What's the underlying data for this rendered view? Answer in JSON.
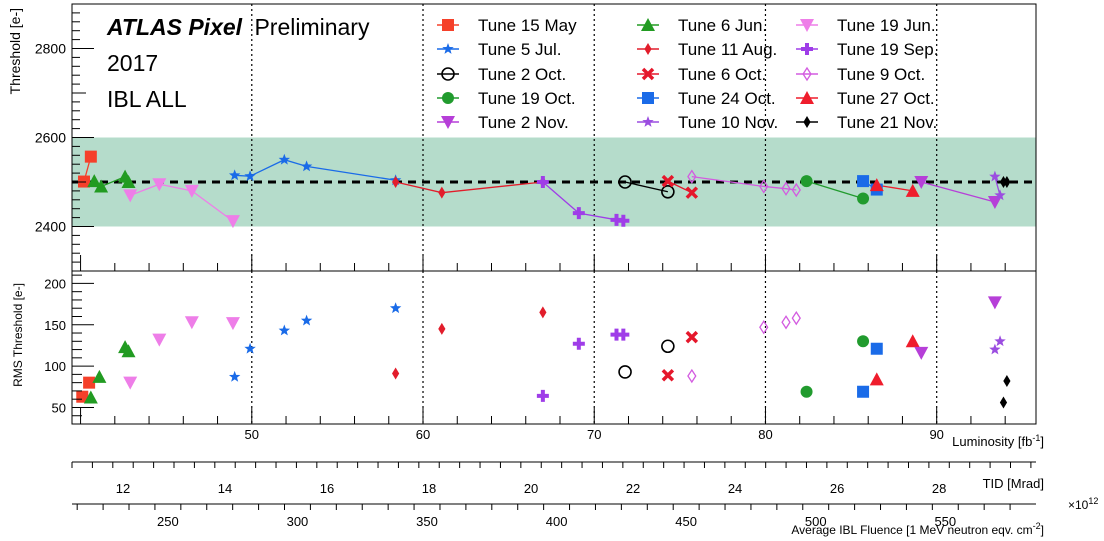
{
  "chart_data": {
    "type": "scatter",
    "annotation": {
      "atlas": "ATLAS Pixel",
      "status": "Preliminary",
      "year": "2017",
      "detector": "IBL ALL"
    },
    "top_panel": {
      "ylabel": "Threshold [e-]",
      "ylim": [
        2300,
        2900
      ],
      "yticks": [
        2400,
        2600,
        2800
      ],
      "target_line": 2500,
      "band": [
        2400,
        2600
      ],
      "band_color": "#b5dccb"
    },
    "bottom_panel": {
      "ylabel": "RMS Threshold [e-]",
      "ylim": [
        30,
        215
      ],
      "yticks": [
        50,
        100,
        150,
        200
      ]
    },
    "x_axis": {
      "label": "Luminosity [fb",
      "label_sup": "-1",
      "label_end": "]",
      "xlim": [
        39.5,
        95.8
      ],
      "ticks": [
        50,
        60,
        70,
        80,
        90
      ]
    },
    "tid_axis": {
      "label": "TID [Mrad]",
      "ticks": [
        12,
        14,
        16,
        18,
        20,
        22,
        24,
        26,
        28
      ],
      "lum_at": [
        [
          11.0,
          39.5
        ],
        [
          29.9,
          95.8
        ]
      ]
    },
    "fluence_axis": {
      "label": "Average IBL Fluence [1 MeV neutron eqv. cm",
      "label_sup": "-2",
      "label_end": "]",
      "exponent": "×10",
      "exponent_sup": "12",
      "ticks": [
        250,
        300,
        350,
        400,
        450,
        500,
        550
      ],
      "lum_at": [
        [
          213,
          39.5
        ],
        [
          585,
          95.8
        ]
      ]
    },
    "series": [
      {
        "name": "Tune 15 May",
        "color": "#f5402a",
        "marker": "square",
        "line": true,
        "threshold": [
          [
            40.2,
            2501
          ],
          [
            40.6,
            2557
          ]
        ],
        "rms": [
          [
            40.1,
            63
          ],
          [
            40.5,
            80
          ]
        ]
      },
      {
        "name": "Tune 6 Jun.",
        "color": "#229b22",
        "marker": "triangle-up",
        "line": true,
        "threshold": [
          [
            40.8,
            2502
          ],
          [
            41.2,
            2490
          ],
          [
            42.6,
            2512
          ],
          [
            42.8,
            2500
          ]
        ],
        "rms": [
          [
            40.6,
            62
          ],
          [
            41.1,
            87
          ],
          [
            42.6,
            123
          ],
          [
            42.8,
            118
          ]
        ]
      },
      {
        "name": "Tune 19 Jun.",
        "color": "#ee7ee8",
        "marker": "triangle-down",
        "line": true,
        "threshold": [
          [
            42.9,
            2470
          ],
          [
            44.6,
            2495
          ],
          [
            46.5,
            2480
          ],
          [
            48.9,
            2412
          ]
        ],
        "rms": [
          [
            42.9,
            80
          ],
          [
            44.6,
            132
          ],
          [
            46.5,
            153
          ],
          [
            48.9,
            152
          ]
        ]
      },
      {
        "name": "Tune 5 Jul.",
        "color": "#1a6be8",
        "marker": "star",
        "line": true,
        "threshold": [
          [
            49.0,
            2515
          ],
          [
            49.9,
            2513
          ],
          [
            51.9,
            2550
          ],
          [
            53.2,
            2535
          ],
          [
            58.4,
            2504
          ]
        ],
        "rms": [
          [
            49.0,
            87
          ],
          [
            49.9,
            121
          ],
          [
            51.9,
            143
          ],
          [
            53.2,
            155
          ],
          [
            58.4,
            170
          ]
        ]
      },
      {
        "name": "Tune 11 Aug.",
        "color": "#e21d2b",
        "marker": "diamond",
        "line": true,
        "threshold": [
          [
            58.4,
            2500
          ],
          [
            61.1,
            2476
          ],
          [
            67.0,
            2500
          ]
        ],
        "rms": [
          [
            58.4,
            91
          ],
          [
            61.1,
            145
          ],
          [
            67.0,
            165
          ]
        ]
      },
      {
        "name": "Tune 19 Sep.",
        "color": "#9f3de8",
        "marker": "cross",
        "line": true,
        "threshold": [
          [
            67.0,
            2500
          ],
          [
            69.1,
            2430
          ],
          [
            71.3,
            2415
          ],
          [
            71.7,
            2413
          ]
        ],
        "rms": [
          [
            67.0,
            64
          ],
          [
            69.1,
            127
          ],
          [
            71.3,
            138
          ],
          [
            71.7,
            138
          ]
        ]
      },
      {
        "name": "Tune 2 Oct.",
        "color": "#000000",
        "marker": "circle-open",
        "line": true,
        "threshold": [
          [
            71.8,
            2500
          ],
          [
            74.3,
            2478
          ]
        ],
        "rms": [
          [
            71.8,
            93
          ],
          [
            74.3,
            124
          ]
        ]
      },
      {
        "name": "Tune 6 Oct.",
        "color": "#e5172b",
        "marker": "x",
        "line": true,
        "threshold": [
          [
            74.3,
            2502
          ],
          [
            75.7,
            2476
          ]
        ],
        "rms": [
          [
            74.3,
            89
          ],
          [
            75.7,
            135
          ]
        ]
      },
      {
        "name": "Tune 9 Oct.",
        "color": "#d35be0",
        "marker": "diamond-open",
        "line": true,
        "threshold": [
          [
            75.7,
            2512
          ],
          [
            79.9,
            2490
          ],
          [
            81.2,
            2485
          ],
          [
            81.8,
            2482
          ]
        ],
        "rms": [
          [
            75.7,
            88
          ],
          [
            79.9,
            147
          ],
          [
            81.2,
            153
          ],
          [
            81.8,
            158
          ]
        ]
      },
      {
        "name": "Tune 19 Oct.",
        "color": "#219b2e",
        "marker": "circle",
        "line": true,
        "threshold": [
          [
            82.4,
            2502
          ],
          [
            85.7,
            2463
          ]
        ],
        "rms": [
          [
            82.4,
            69
          ],
          [
            85.7,
            130
          ]
        ]
      },
      {
        "name": "Tune 24 Oct.",
        "color": "#1a6be8",
        "marker": "square",
        "line": true,
        "threshold": [
          [
            85.7,
            2502
          ],
          [
            86.5,
            2483
          ]
        ],
        "rms": [
          [
            85.7,
            69
          ],
          [
            86.5,
            121
          ]
        ]
      },
      {
        "name": "Tune 27 Oct.",
        "color": "#ef1d2c",
        "marker": "triangle-up",
        "line": true,
        "threshold": [
          [
            86.5,
            2493
          ],
          [
            88.6,
            2480
          ]
        ],
        "rms": [
          [
            86.5,
            84
          ],
          [
            88.6,
            130
          ]
        ]
      },
      {
        "name": "Tune 2 Nov.",
        "color": "#b63fd8",
        "marker": "triangle-down",
        "line": true,
        "threshold": [
          [
            89.1,
            2500
          ],
          [
            93.4,
            2455
          ]
        ],
        "rms": [
          [
            89.1,
            116
          ],
          [
            93.4,
            177
          ]
        ]
      },
      {
        "name": "Tune 10 Nov.",
        "color": "#9b4de0",
        "marker": "star",
        "line": true,
        "threshold": [
          [
            93.4,
            2512
          ],
          [
            93.7,
            2470
          ]
        ],
        "rms": [
          [
            93.4,
            120
          ],
          [
            93.7,
            130
          ]
        ]
      },
      {
        "name": "Tune 21 Nov.",
        "color": "#000000",
        "marker": "diamond",
        "line": true,
        "threshold": [
          [
            93.9,
            2500
          ],
          [
            94.1,
            2500
          ]
        ],
        "rms": [
          [
            93.9,
            56
          ],
          [
            94.1,
            82
          ]
        ]
      }
    ]
  }
}
